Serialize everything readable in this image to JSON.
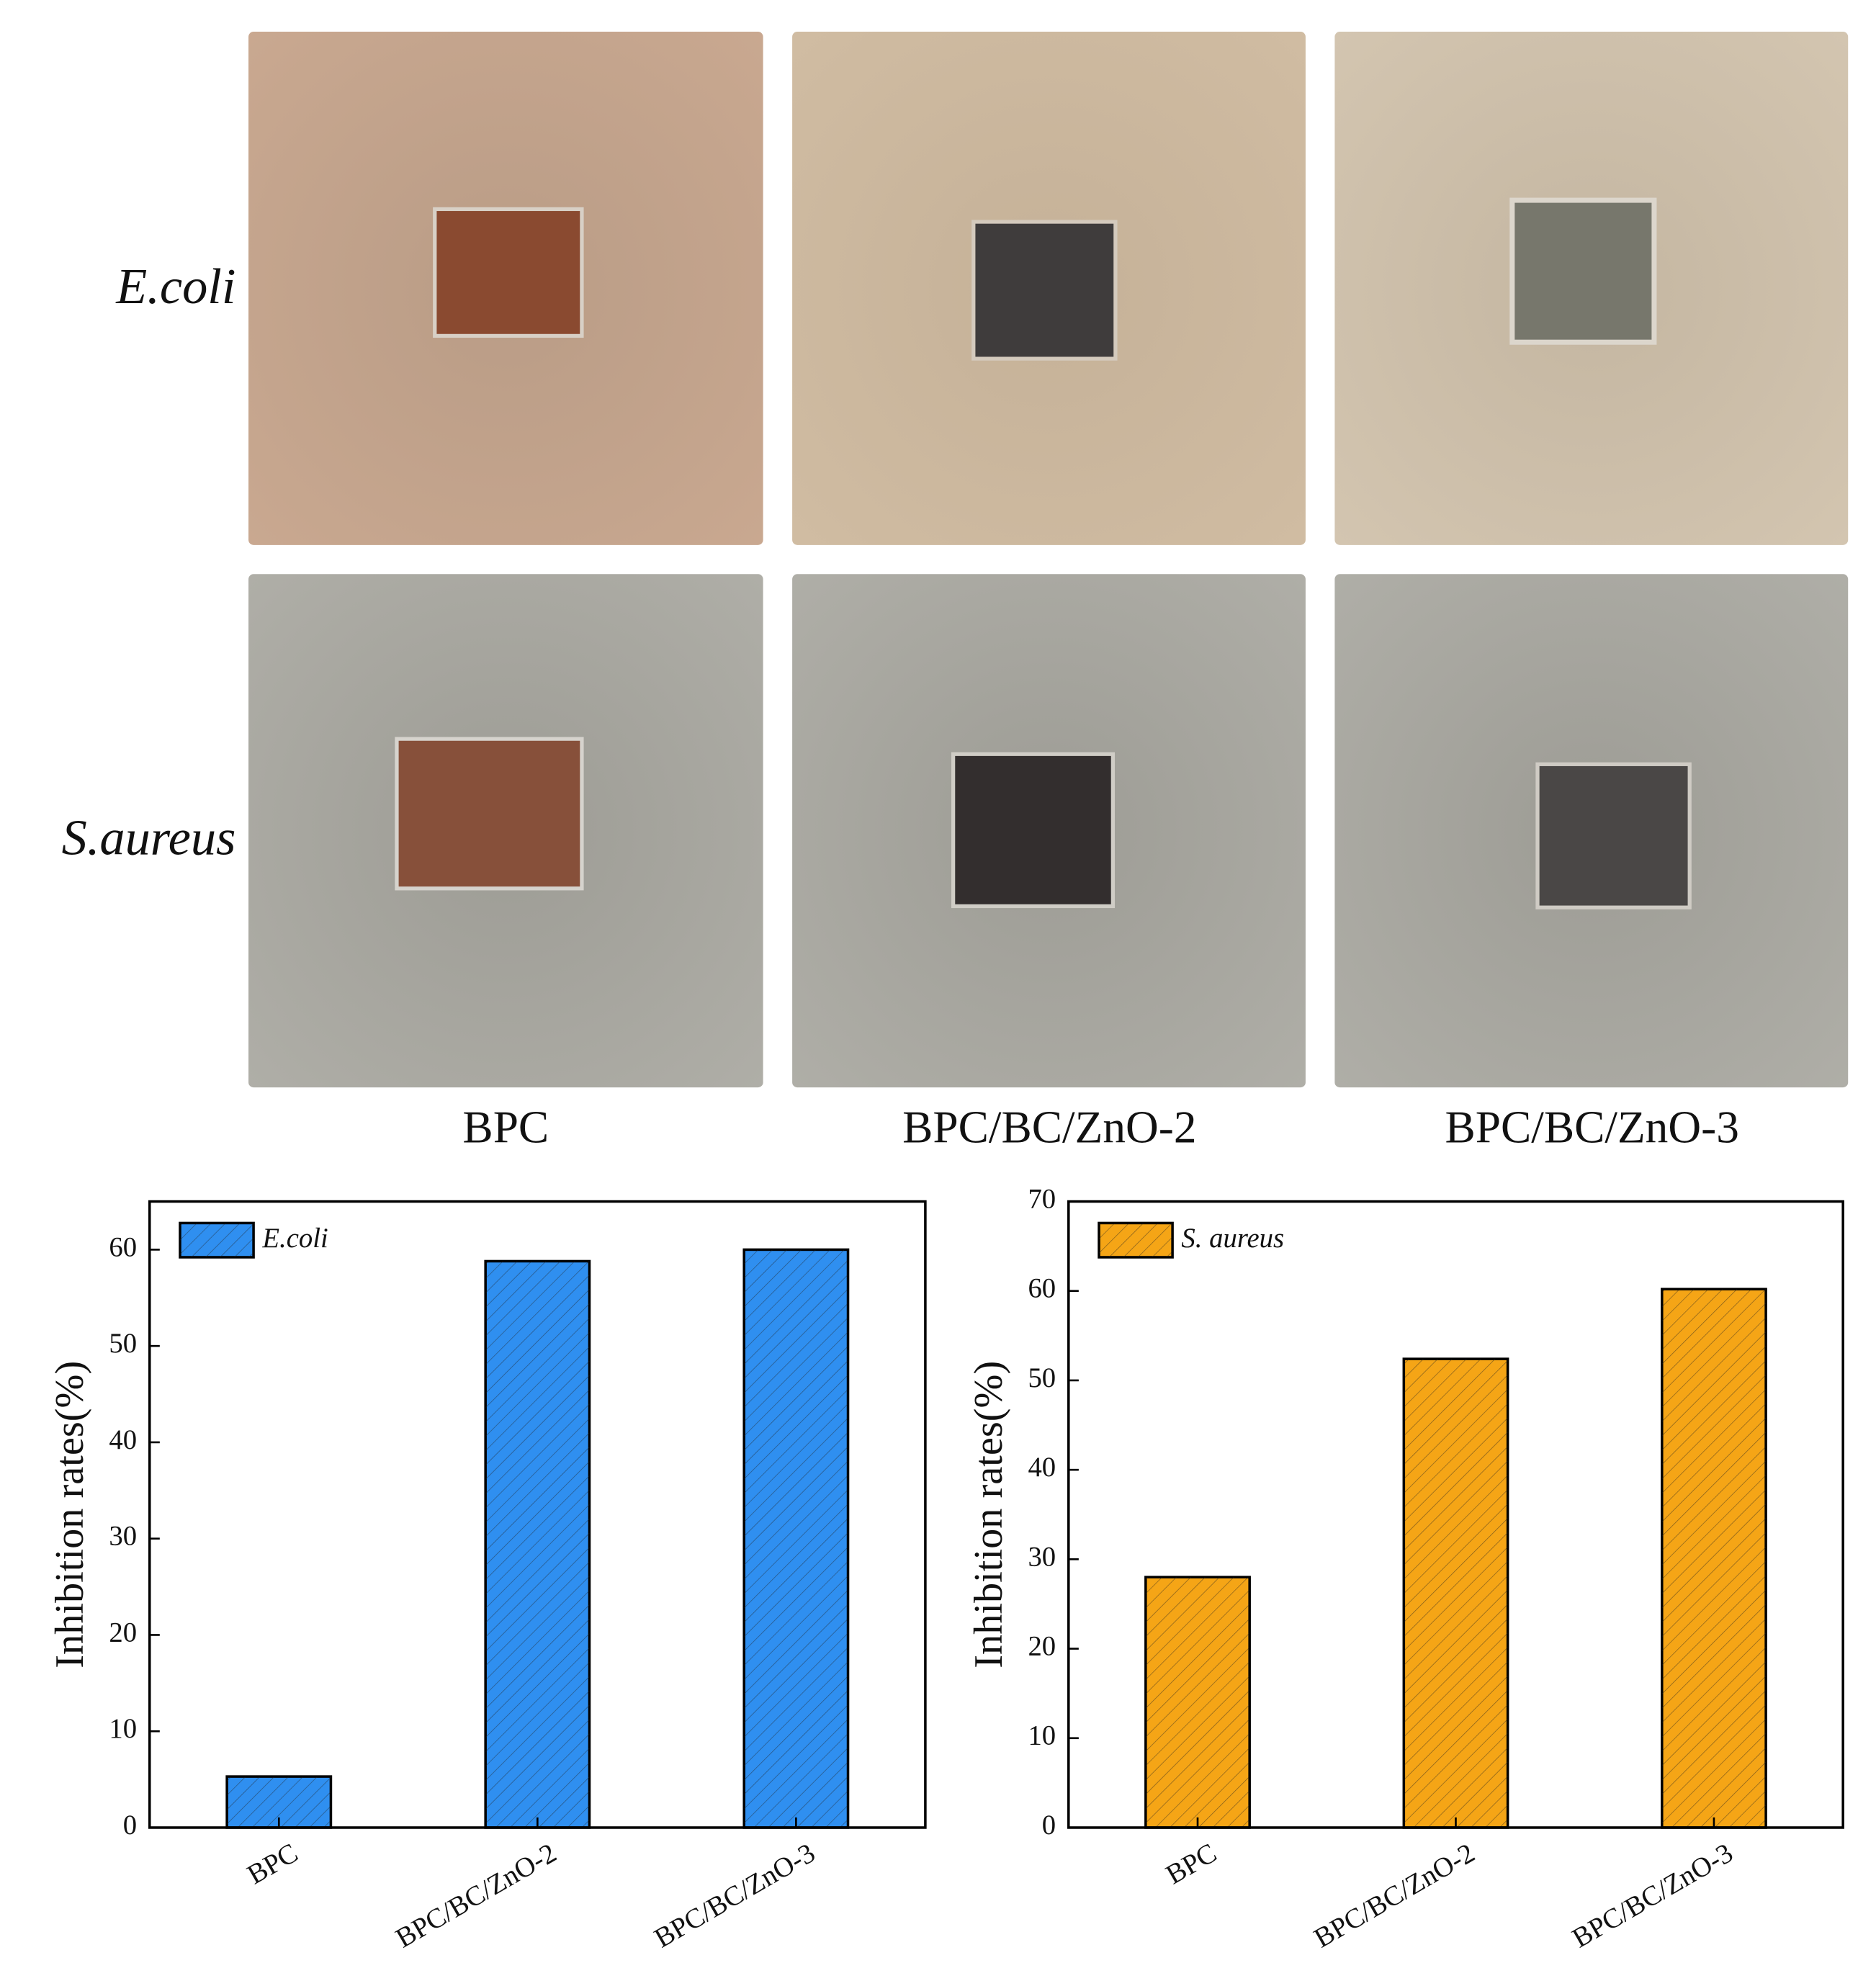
{
  "photo_grid": {
    "rows": [
      "E.coli",
      "S.aureus"
    ],
    "columns": [
      "BPC",
      "BPC/BC/ZnO-2",
      "BPC/BC/ZnO-3"
    ]
  },
  "chart_data": [
    {
      "type": "bar",
      "ylabel": "Inhibition rates(%)",
      "categories": [
        "BPC",
        "BPC/BC/ZnO-2",
        "BPC/BC/ZnO-3"
      ],
      "series": [
        {
          "name": "E.coli",
          "color": "#2f8ff0",
          "values": [
            5.3,
            58.8,
            60.0
          ]
        }
      ],
      "ylim": [
        0,
        65
      ],
      "yticks": [
        0,
        10,
        20,
        30,
        40,
        50,
        60
      ],
      "legend": "upper left"
    },
    {
      "type": "bar",
      "ylabel": "Inhibition rates(%)",
      "categories": [
        "BPC",
        "BPC/BC/ZnO-2",
        "BPC/BC/ZnO-3"
      ],
      "series": [
        {
          "name": "S. aureus",
          "color": "#f5a516",
          "values": [
            28.0,
            52.4,
            60.2
          ]
        }
      ],
      "ylim": [
        0,
        70
      ],
      "yticks": [
        0,
        10,
        20,
        30,
        40,
        50,
        60,
        70
      ],
      "legend": "upper left"
    }
  ]
}
